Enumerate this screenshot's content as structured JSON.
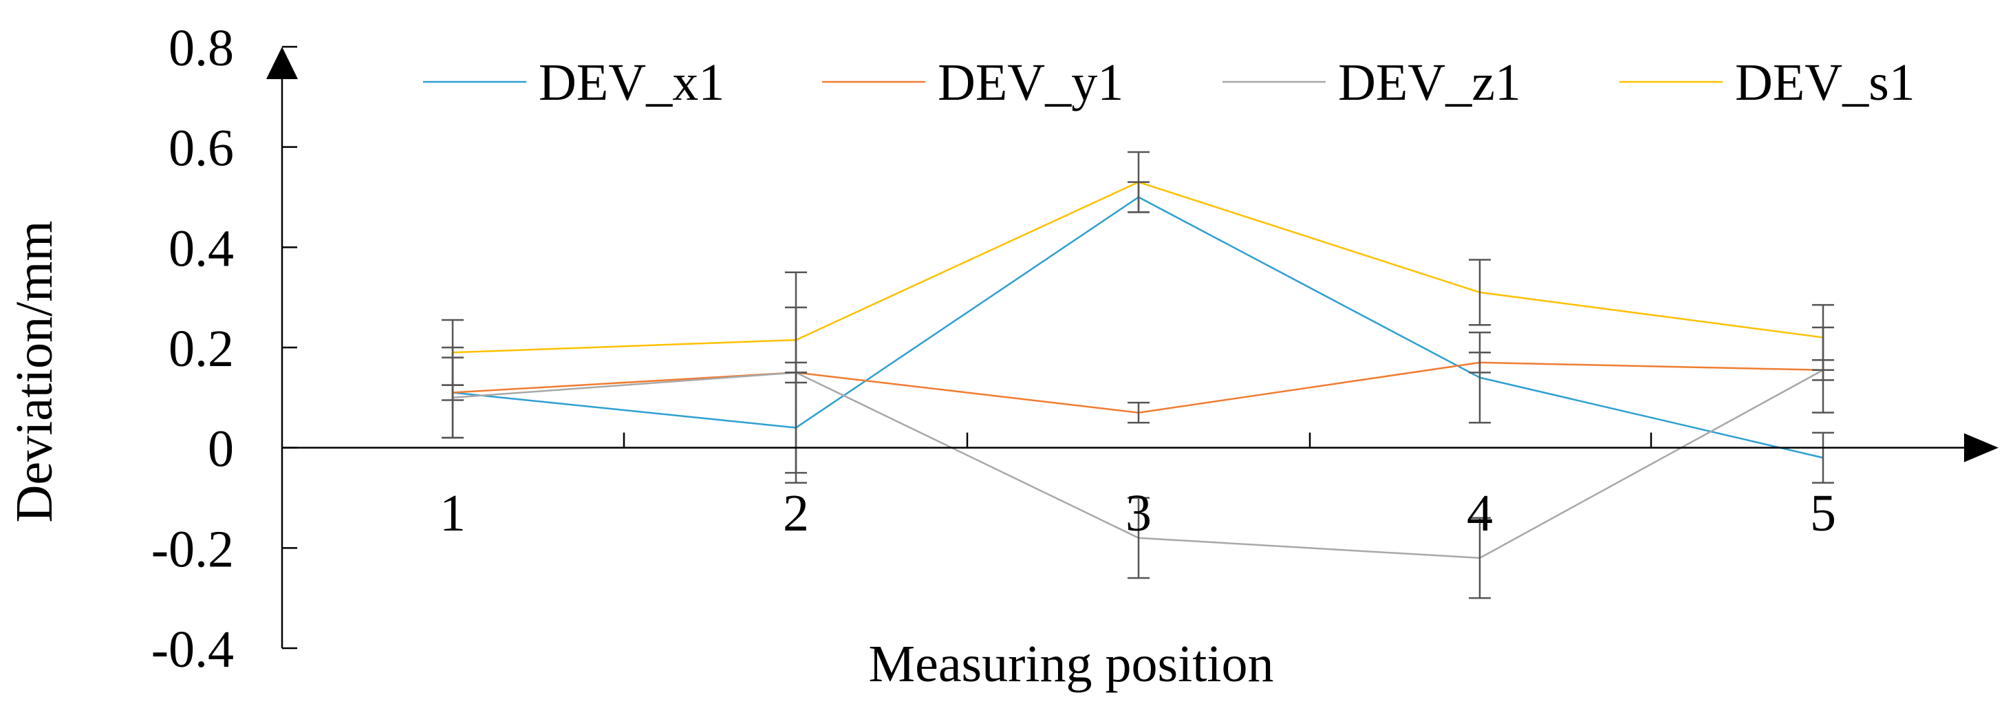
{
  "chart_data": {
    "type": "line",
    "title": "",
    "xlabel": "Measuring position",
    "ylabel": "Deviation/mm",
    "categories": [
      "1",
      "2",
      "3",
      "4",
      "5"
    ],
    "ylim": [
      -0.4,
      0.8
    ],
    "yticks": [
      -0.4,
      -0.2,
      0,
      0.2,
      0.4,
      0.6,
      0.8
    ],
    "ytick_labels": [
      "-0.4",
      "-0.2",
      "0",
      "0.2",
      "0.4",
      "0.6",
      "0.8"
    ],
    "grid": false,
    "legend_position": "top",
    "series": [
      {
        "name": "DEV_x1",
        "color": "#2E9FD1",
        "values": [
          0.11,
          0.04,
          0.5,
          0.14,
          -0.02
        ],
        "errors": [
          0.09,
          0.11,
          0.03,
          0.09,
          0.05
        ]
      },
      {
        "name": "DEV_y1",
        "color": "#F07C31",
        "values": [
          0.11,
          0.15,
          0.07,
          0.17,
          0.155
        ],
        "errors": [
          0.015,
          0.02,
          0.02,
          0.02,
          0.02
        ]
      },
      {
        "name": "DEV_z1",
        "color": "#A8A8A8",
        "values": [
          0.1,
          0.15,
          -0.18,
          -0.22,
          0.155
        ],
        "errors": [
          0.08,
          0.2,
          0.08,
          0.08,
          0.085
        ]
      },
      {
        "name": "DEV_s1",
        "color": "#FFC000",
        "values": [
          0.19,
          0.215,
          0.53,
          0.31,
          0.22
        ],
        "errors": [
          0.065,
          0.065,
          0.06,
          0.065,
          0.065
        ]
      }
    ]
  }
}
